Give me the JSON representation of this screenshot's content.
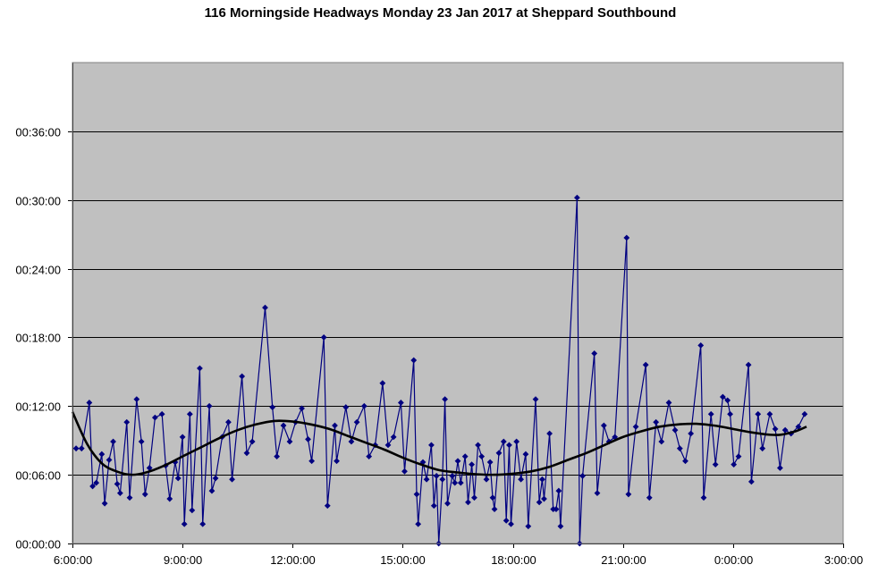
{
  "chart_data": {
    "type": "line",
    "title": "116 Morningside Headways Monday 23 Jan 2017 at Sheppard Southbound",
    "xlabel": "",
    "ylabel": "",
    "x_unit": "hours since 00:00 Monday",
    "y_unit": "minutes",
    "xlim": [
      6,
      27
    ],
    "ylim": [
      0,
      42
    ],
    "x_ticks": [
      {
        "value": 6,
        "label": "6:00:00"
      },
      {
        "value": 9,
        "label": "9:00:00"
      },
      {
        "value": 12,
        "label": "12:00:00"
      },
      {
        "value": 15,
        "label": "15:00:00"
      },
      {
        "value": 18,
        "label": "18:00:00"
      },
      {
        "value": 21,
        "label": "21:00:00"
      },
      {
        "value": 24,
        "label": "0:00:00"
      },
      {
        "value": 27,
        "label": "3:00:00"
      }
    ],
    "y_ticks": [
      {
        "value": 0,
        "label": "00:00:00"
      },
      {
        "value": 6,
        "label": "00:06:00"
      },
      {
        "value": 12,
        "label": "00:12:00"
      },
      {
        "value": 18,
        "label": "00:18:00"
      },
      {
        "value": 24,
        "label": "00:24:00"
      },
      {
        "value": 30,
        "label": "00:30:00"
      },
      {
        "value": 36,
        "label": "00:36:00"
      }
    ],
    "grid": true,
    "plot_background": "#c0c0c0",
    "series": [
      {
        "color": "#000080",
        "marker": "diamond",
        "points": [
          [
            6.1,
            8.3
          ],
          [
            6.25,
            8.3
          ],
          [
            6.46,
            12.3
          ],
          [
            6.55,
            5.0
          ],
          [
            6.65,
            5.3
          ],
          [
            6.8,
            7.8
          ],
          [
            6.88,
            3.5
          ],
          [
            7.0,
            7.3
          ],
          [
            7.11,
            8.9
          ],
          [
            7.22,
            5.2
          ],
          [
            7.3,
            4.4
          ],
          [
            7.48,
            10.6
          ],
          [
            7.56,
            4.0
          ],
          [
            7.75,
            12.6
          ],
          [
            7.88,
            8.9
          ],
          [
            7.98,
            4.3
          ],
          [
            8.1,
            6.6
          ],
          [
            8.25,
            11.0
          ],
          [
            8.44,
            11.3
          ],
          [
            8.54,
            6.8
          ],
          [
            8.65,
            3.9
          ],
          [
            8.8,
            7.1
          ],
          [
            8.88,
            5.7
          ],
          [
            9.0,
            9.3
          ],
          [
            9.05,
            1.7
          ],
          [
            9.2,
            11.3
          ],
          [
            9.26,
            2.9
          ],
          [
            9.47,
            15.3
          ],
          [
            9.55,
            1.7
          ],
          [
            9.73,
            12.0
          ],
          [
            9.8,
            4.6
          ],
          [
            9.9,
            5.7
          ],
          [
            10.08,
            9.3
          ],
          [
            10.25,
            10.6
          ],
          [
            10.35,
            5.6
          ],
          [
            10.62,
            14.6
          ],
          [
            10.75,
            7.9
          ],
          [
            10.9,
            8.9
          ],
          [
            11.25,
            20.6
          ],
          [
            11.45,
            11.9
          ],
          [
            11.57,
            7.6
          ],
          [
            11.75,
            10.3
          ],
          [
            11.92,
            8.9
          ],
          [
            12.08,
            10.6
          ],
          [
            12.25,
            11.8
          ],
          [
            12.42,
            9.1
          ],
          [
            12.52,
            7.2
          ],
          [
            12.85,
            18.0
          ],
          [
            12.95,
            3.3
          ],
          [
            13.15,
            10.3
          ],
          [
            13.2,
            7.2
          ],
          [
            13.45,
            11.9
          ],
          [
            13.6,
            8.9
          ],
          [
            13.75,
            10.6
          ],
          [
            13.95,
            12.0
          ],
          [
            14.08,
            7.6
          ],
          [
            14.25,
            8.6
          ],
          [
            14.45,
            14.0
          ],
          [
            14.6,
            8.6
          ],
          [
            14.75,
            9.3
          ],
          [
            14.95,
            12.3
          ],
          [
            15.05,
            6.3
          ],
          [
            15.3,
            16.0
          ],
          [
            15.38,
            4.3
          ],
          [
            15.42,
            1.7
          ],
          [
            15.55,
            7.1
          ],
          [
            15.65,
            5.6
          ],
          [
            15.78,
            8.6
          ],
          [
            15.85,
            3.3
          ],
          [
            15.92,
            5.9
          ],
          [
            15.98,
            0.0
          ],
          [
            16.08,
            5.6
          ],
          [
            16.15,
            12.6
          ],
          [
            16.22,
            3.5
          ],
          [
            16.35,
            5.9
          ],
          [
            16.42,
            5.3
          ],
          [
            16.5,
            7.2
          ],
          [
            16.58,
            5.3
          ],
          [
            16.7,
            7.6
          ],
          [
            16.78,
            3.6
          ],
          [
            16.88,
            6.9
          ],
          [
            16.95,
            4.0
          ],
          [
            17.05,
            8.6
          ],
          [
            17.15,
            7.6
          ],
          [
            17.28,
            5.6
          ],
          [
            17.38,
            7.1
          ],
          [
            17.45,
            4.0
          ],
          [
            17.5,
            3.0
          ],
          [
            17.62,
            7.9
          ],
          [
            17.75,
            8.9
          ],
          [
            17.82,
            2.0
          ],
          [
            17.9,
            8.6
          ],
          [
            17.95,
            1.7
          ],
          [
            18.1,
            8.9
          ],
          [
            18.22,
            5.6
          ],
          [
            18.35,
            7.8
          ],
          [
            18.42,
            1.5
          ],
          [
            18.62,
            12.6
          ],
          [
            18.72,
            3.6
          ],
          [
            18.8,
            5.6
          ],
          [
            18.85,
            3.9
          ],
          [
            19.0,
            9.6
          ],
          [
            19.1,
            3.0
          ],
          [
            19.18,
            3.0
          ],
          [
            19.25,
            4.6
          ],
          [
            19.3,
            1.5
          ],
          [
            19.75,
            30.2
          ],
          [
            19.82,
            0.0
          ],
          [
            19.9,
            5.9
          ],
          [
            20.22,
            16.6
          ],
          [
            20.3,
            4.4
          ],
          [
            20.48,
            10.3
          ],
          [
            20.62,
            8.9
          ],
          [
            20.78,
            9.3
          ],
          [
            21.1,
            26.7
          ],
          [
            21.15,
            4.3
          ],
          [
            21.35,
            10.2
          ],
          [
            21.62,
            15.6
          ],
          [
            21.72,
            4.0
          ],
          [
            21.9,
            10.6
          ],
          [
            22.05,
            8.9
          ],
          [
            22.25,
            12.3
          ],
          [
            22.42,
            9.9
          ],
          [
            22.55,
            8.3
          ],
          [
            22.7,
            7.2
          ],
          [
            22.85,
            9.6
          ],
          [
            23.12,
            17.3
          ],
          [
            23.2,
            4.0
          ],
          [
            23.4,
            11.3
          ],
          [
            23.52,
            6.9
          ],
          [
            23.72,
            12.8
          ],
          [
            23.85,
            12.5
          ],
          [
            23.92,
            11.3
          ],
          [
            24.02,
            6.9
          ],
          [
            24.15,
            7.6
          ],
          [
            24.42,
            15.6
          ],
          [
            24.5,
            5.4
          ],
          [
            24.68,
            11.3
          ],
          [
            24.8,
            8.3
          ],
          [
            25.0,
            11.3
          ],
          [
            25.15,
            10.0
          ],
          [
            25.28,
            6.6
          ],
          [
            25.42,
            9.9
          ],
          [
            25.58,
            9.6
          ],
          [
            25.78,
            10.2
          ],
          [
            25.95,
            11.3
          ]
        ]
      }
    ],
    "trendline": {
      "color": "#000000",
      "points": [
        [
          6.0,
          11.5
        ],
        [
          6.4,
          8.7
        ],
        [
          6.8,
          7.0
        ],
        [
          7.2,
          6.3
        ],
        [
          7.6,
          6.0
        ],
        [
          8.0,
          6.2
        ],
        [
          8.5,
          6.8
        ],
        [
          9.0,
          7.6
        ],
        [
          9.5,
          8.4
        ],
        [
          10.0,
          9.2
        ],
        [
          10.5,
          9.9
        ],
        [
          11.0,
          10.4
        ],
        [
          11.5,
          10.7
        ],
        [
          12.0,
          10.65
        ],
        [
          12.5,
          10.4
        ],
        [
          13.0,
          10.0
        ],
        [
          13.5,
          9.4
        ],
        [
          14.0,
          8.8
        ],
        [
          14.5,
          8.2
        ],
        [
          15.0,
          7.5
        ],
        [
          15.5,
          6.9
        ],
        [
          16.0,
          6.4
        ],
        [
          16.5,
          6.2
        ],
        [
          17.0,
          6.05
        ],
        [
          17.5,
          6.0
        ],
        [
          18.0,
          6.1
        ],
        [
          18.5,
          6.3
        ],
        [
          19.0,
          6.7
        ],
        [
          19.5,
          7.3
        ],
        [
          20.0,
          7.9
        ],
        [
          20.5,
          8.6
        ],
        [
          21.0,
          9.3
        ],
        [
          21.5,
          9.8
        ],
        [
          22.0,
          10.2
        ],
        [
          22.5,
          10.4
        ],
        [
          23.0,
          10.45
        ],
        [
          23.5,
          10.3
        ],
        [
          24.0,
          10.0
        ],
        [
          24.5,
          9.7
        ],
        [
          25.0,
          9.5
        ],
        [
          25.3,
          9.5
        ],
        [
          25.7,
          9.8
        ],
        [
          26.0,
          10.2
        ]
      ]
    }
  }
}
